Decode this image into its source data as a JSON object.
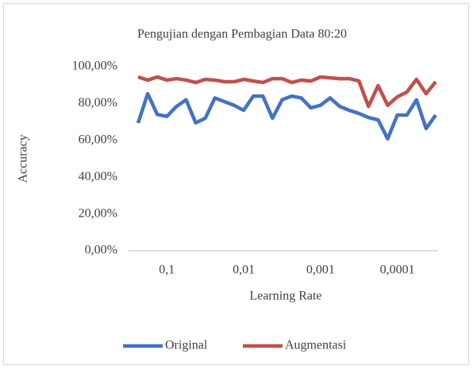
{
  "chart_data": {
    "type": "line",
    "title": "Pengujian dengan Pembagian Data 80:20",
    "x_label": "Learning Rate",
    "y_label": "Accuracy",
    "categories": [
      null,
      null,
      null,
      "0,1",
      null,
      null,
      null,
      null,
      null,
      null,
      null,
      "0,01",
      null,
      null,
      null,
      null,
      null,
      null,
      null,
      "0,001",
      null,
      null,
      null,
      null,
      null,
      null,
      null,
      "0,0001",
      null,
      null,
      null,
      null
    ],
    "series": [
      {
        "name": "Original",
        "color": "#4472c4",
        "values": [
          69.4,
          85.3,
          74,
          73,
          78.4,
          82,
          69.5,
          72,
          83,
          81,
          79,
          76.3,
          84,
          84,
          72,
          82,
          84,
          83,
          77.6,
          79,
          83,
          78.4,
          76.3,
          74.6,
          72.4,
          71.1,
          60.8,
          73.7,
          73.7,
          82,
          66.4,
          73.7
        ]
      },
      {
        "name": "Augmentasi",
        "color": "#c0504d",
        "values": [
          94.4,
          92.7,
          94.4,
          92.7,
          93.5,
          92.7,
          91.4,
          93.1,
          92.7,
          91.8,
          91.8,
          93.1,
          92.2,
          91.4,
          93.5,
          93.5,
          91.4,
          92.7,
          92.2,
          94.4,
          93.9,
          93.5,
          93.5,
          92.2,
          78.4,
          89.7,
          79,
          83.6,
          86.2,
          93.1,
          85.3,
          91.8
        ]
      }
    ],
    "ylim": [
      0,
      100
    ],
    "yticks": [
      {
        "value": 0,
        "label": "0,00%"
      },
      {
        "value": 20,
        "label": "20,00%"
      },
      {
        "value": 40,
        "label": "40,00%"
      },
      {
        "value": 60,
        "label": "60,00%"
      },
      {
        "value": 80,
        "label": "80,00%"
      },
      {
        "value": 100,
        "label": "100,00%"
      }
    ],
    "grid": false,
    "legend": "bottom"
  }
}
